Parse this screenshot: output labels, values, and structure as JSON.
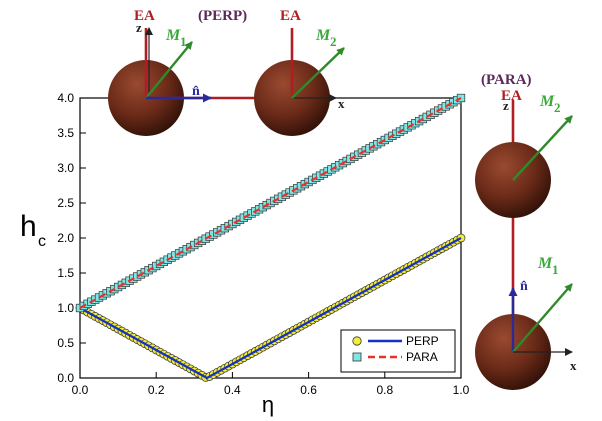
{
  "chart_data": {
    "type": "scatter",
    "xlabel": "η",
    "ylabel": "h",
    "ylabel_sub": "c",
    "xlim": [
      0.0,
      1.0
    ],
    "ylim": [
      0.0,
      4.0
    ],
    "xticks": [
      "0.0",
      "0.2",
      "0.4",
      "0.6",
      "0.8",
      "1.0"
    ],
    "yticks": [
      "0.0",
      "0.5",
      "1.0",
      "1.5",
      "2.0",
      "2.5",
      "3.0",
      "3.5",
      "4.0"
    ],
    "series": [
      {
        "name": "PERP",
        "marker": "circle",
        "marker_color": "#f2ec3a",
        "line_color": "#1530c8",
        "line_style": "solid",
        "points": [
          [
            0.0,
            1.0
          ],
          [
            0.1,
            0.7
          ],
          [
            0.2,
            0.4
          ],
          [
            0.3,
            0.1
          ],
          [
            0.333,
            0.0
          ],
          [
            0.4,
            0.2
          ],
          [
            0.5,
            0.5
          ],
          [
            0.6,
            0.8
          ],
          [
            0.7,
            1.1
          ],
          [
            0.8,
            1.4
          ],
          [
            0.9,
            1.7
          ],
          [
            1.0,
            2.0
          ]
        ]
      },
      {
        "name": "PARA",
        "marker": "square",
        "marker_color": "#7fe6e6",
        "line_color": "#e8312a",
        "line_style": "dashed",
        "points": [
          [
            0.0,
            1.0
          ],
          [
            0.1,
            1.3
          ],
          [
            0.2,
            1.6
          ],
          [
            0.3,
            1.9
          ],
          [
            0.4,
            2.2
          ],
          [
            0.5,
            2.5
          ],
          [
            0.6,
            2.8
          ],
          [
            0.7,
            3.1
          ],
          [
            0.8,
            3.4
          ],
          [
            0.9,
            3.7
          ],
          [
            1.0,
            4.0
          ]
        ]
      }
    ],
    "legend_position": "bottom-right",
    "grid": false
  },
  "insets": {
    "perp": {
      "title": "(PERP)",
      "easy_axis_left": "EA",
      "easy_axis_right": "EA",
      "z_label": "z",
      "x_label": "x",
      "n_label": "n̂",
      "m1_label": "M",
      "m1_sub": "1",
      "m2_label": "M",
      "m2_sub": "2"
    },
    "para": {
      "title": "(PARA)",
      "easy_axis": "EA",
      "z_label": "z",
      "x_label": "x",
      "n_label": "n̂",
      "m1_label": "M",
      "m1_sub": "1",
      "m2_label": "M",
      "m2_sub": "2"
    }
  },
  "colors": {
    "easy_axis": "#b01e23",
    "moment": "#2f8a2a",
    "moment_label": "#3aa83a",
    "normal": "#2a2a9a",
    "sphere": "#6a2a18",
    "title": "#5a2a5a"
  }
}
